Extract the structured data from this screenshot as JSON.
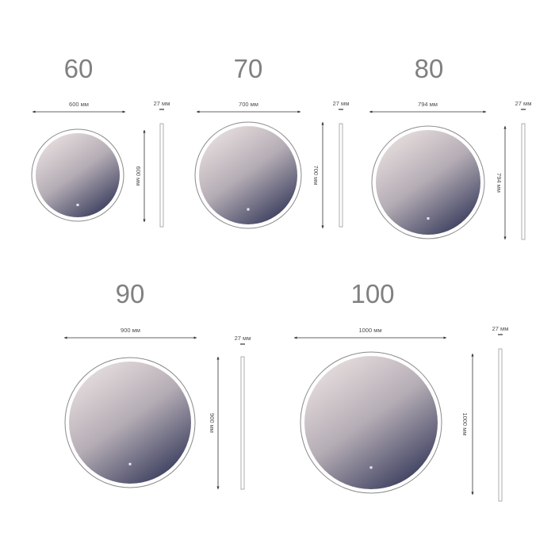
{
  "colors": {
    "dimension_line": "#333333",
    "label_text": "#4d4d4d",
    "size_title": "#808080",
    "frame": "#c8c8c8",
    "glass_light": "#d9d1d2",
    "glass_dark": "#3d4060"
  },
  "mirrors": [
    {
      "size_label": "60",
      "width_label": "600 мм",
      "height_label": "600 мм",
      "depth_label": "27 мм"
    },
    {
      "size_label": "70",
      "width_label": "700 мм",
      "height_label": "700 мм",
      "depth_label": "27 мм"
    },
    {
      "size_label": "80",
      "width_label": "794 мм",
      "height_label": "794 мм",
      "depth_label": "27 мм"
    },
    {
      "size_label": "90",
      "width_label": "900 мм",
      "height_label": "900 мм",
      "depth_label": "27 мм"
    },
    {
      "size_label": "100",
      "width_label": "1000 мм",
      "height_label": "1000 мм",
      "depth_label": "27 мм"
    }
  ]
}
